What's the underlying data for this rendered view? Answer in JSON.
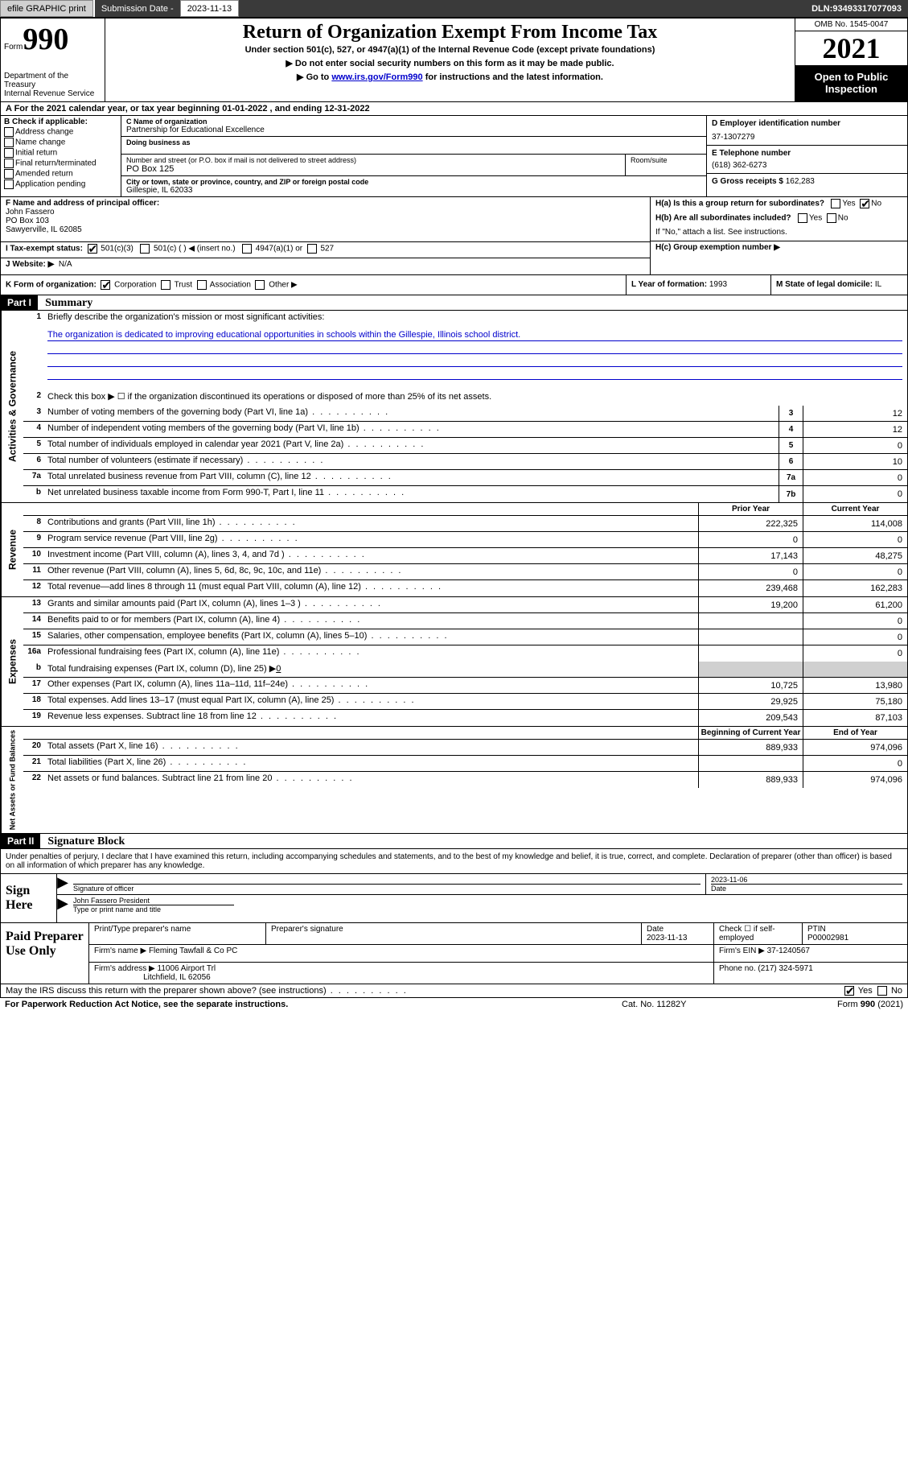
{
  "topbar": {
    "efile": "efile GRAPHIC print",
    "sub_label": "Submission Date - ",
    "sub_date": "2023-11-13",
    "dln_label": "DLN: ",
    "dln": "93493317077093"
  },
  "header": {
    "form_label": "Form",
    "form_num": "990",
    "dept": "Department of the Treasury\nInternal Revenue Service",
    "title": "Return of Organization Exempt From Income Tax",
    "sub1": "Under section 501(c), 527, or 4947(a)(1) of the Internal Revenue Code (except private foundations)",
    "sub2": "▶ Do not enter social security numbers on this form as it may be made public.",
    "sub3_pre": "▶ Go to ",
    "sub3_link": "www.irs.gov/Form990",
    "sub3_post": " for instructions and the latest information.",
    "omb": "OMB No. 1545-0047",
    "year": "2021",
    "open": "Open to Public Inspection"
  },
  "rowA": "A For the 2021 calendar year, or tax year beginning 01-01-2022   , and ending 12-31-2022",
  "checkB": {
    "label": "B Check if applicable:",
    "items": [
      "Address change",
      "Name change",
      "Initial return",
      "Final return/terminated",
      "Amended return",
      "Application pending"
    ]
  },
  "entity": {
    "c_label": "C Name of organization",
    "org_name": "Partnership for Educational Excellence",
    "dba_label": "Doing business as",
    "dba": "",
    "addr_label": "Number and street (or P.O. box if mail is not delivered to street address)",
    "room_label": "Room/suite",
    "addr": "PO Box 125",
    "city_label": "City or town, state or province, country, and ZIP or foreign postal code",
    "city": "Gillespie, IL  62033",
    "d_label": "D Employer identification number",
    "ein": "37-1307279",
    "e_label": "E Telephone number",
    "phone": "(618) 362-6273",
    "g_label": "G Gross receipts $ ",
    "gross": "162,283"
  },
  "fghij": {
    "f_label": "F Name and address of principal officer:",
    "f_name": "John Fassero",
    "f_addr1": "PO Box 103",
    "f_addr2": "Sawyerville, IL  62085",
    "i_label": "I Tax-exempt status:",
    "i_501c3": "501(c)(3)",
    "i_501c": "501(c) (   ) ◀ (insert no.)",
    "i_4947": "4947(a)(1) or",
    "i_527": "527",
    "j_label": "J Website: ▶",
    "j_val": "N/A",
    "ha_label": "H(a)  Is this a group return for subordinates?",
    "hb_label": "H(b)  Are all subordinates included?",
    "hb_note": "If \"No,\" attach a list. See instructions.",
    "hc_label": "H(c)  Group exemption number ▶",
    "yes": "Yes",
    "no": "No"
  },
  "klm": {
    "k_label": "K Form of organization:",
    "k_corp": "Corporation",
    "k_trust": "Trust",
    "k_assoc": "Association",
    "k_other": "Other ▶",
    "l_label": "L Year of formation: ",
    "l_val": "1993",
    "m_label": "M State of legal domicile: ",
    "m_val": "IL"
  },
  "part1": {
    "label": "Part I",
    "title": "Summary"
  },
  "gov": {
    "side": "Activities & Governance",
    "l1": "Briefly describe the organization's mission or most significant activities:",
    "mission": "The organization is dedicated to improving educational opportunities in schools within the Gillespie, Illinois school district.",
    "l2": "Check this box ▶ ☐  if the organization discontinued its operations or disposed of more than 25% of its net assets.",
    "rows": [
      {
        "n": "3",
        "d": "Number of voting members of the governing body (Part VI, line 1a)",
        "b": "3",
        "v": "12"
      },
      {
        "n": "4",
        "d": "Number of independent voting members of the governing body (Part VI, line 1b)",
        "b": "4",
        "v": "12"
      },
      {
        "n": "5",
        "d": "Total number of individuals employed in calendar year 2021 (Part V, line 2a)",
        "b": "5",
        "v": "0"
      },
      {
        "n": "6",
        "d": "Total number of volunteers (estimate if necessary)",
        "b": "6",
        "v": "10"
      },
      {
        "n": "7a",
        "d": "Total unrelated business revenue from Part VIII, column (C), line 12",
        "b": "7a",
        "v": "0"
      },
      {
        "n": "b",
        "d": "Net unrelated business taxable income from Form 990-T, Part I, line 11",
        "b": "7b",
        "v": "0"
      }
    ]
  },
  "rev": {
    "side": "Revenue",
    "hdr_prior": "Prior Year",
    "hdr_curr": "Current Year",
    "rows": [
      {
        "n": "8",
        "d": "Contributions and grants (Part VIII, line 1h)",
        "p": "222,325",
        "c": "114,008"
      },
      {
        "n": "9",
        "d": "Program service revenue (Part VIII, line 2g)",
        "p": "0",
        "c": "0"
      },
      {
        "n": "10",
        "d": "Investment income (Part VIII, column (A), lines 3, 4, and 7d )",
        "p": "17,143",
        "c": "48,275"
      },
      {
        "n": "11",
        "d": "Other revenue (Part VIII, column (A), lines 5, 6d, 8c, 9c, 10c, and 11e)",
        "p": "0",
        "c": "0"
      },
      {
        "n": "12",
        "d": "Total revenue—add lines 8 through 11 (must equal Part VIII, column (A), line 12)",
        "p": "239,468",
        "c": "162,283"
      }
    ]
  },
  "exp": {
    "side": "Expenses",
    "rows": [
      {
        "n": "13",
        "d": "Grants and similar amounts paid (Part IX, column (A), lines 1–3 )",
        "p": "19,200",
        "c": "61,200"
      },
      {
        "n": "14",
        "d": "Benefits paid to or for members (Part IX, column (A), line 4)",
        "p": "",
        "c": "0"
      },
      {
        "n": "15",
        "d": "Salaries, other compensation, employee benefits (Part IX, column (A), lines 5–10)",
        "p": "",
        "c": "0"
      },
      {
        "n": "16a",
        "d": "Professional fundraising fees (Part IX, column (A), line 11e)",
        "p": "",
        "c": "0"
      }
    ],
    "l16b_pre": "Total fundraising expenses (Part IX, column (D), line 25) ▶",
    "l16b_val": "0",
    "rows2": [
      {
        "n": "17",
        "d": "Other expenses (Part IX, column (A), lines 11a–11d, 11f–24e)",
        "p": "10,725",
        "c": "13,980"
      },
      {
        "n": "18",
        "d": "Total expenses. Add lines 13–17 (must equal Part IX, column (A), line 25)",
        "p": "29,925",
        "c": "75,180"
      },
      {
        "n": "19",
        "d": "Revenue less expenses. Subtract line 18 from line 12",
        "p": "209,543",
        "c": "87,103"
      }
    ]
  },
  "net": {
    "side": "Net Assets or Fund Balances",
    "hdr_beg": "Beginning of Current Year",
    "hdr_end": "End of Year",
    "rows": [
      {
        "n": "20",
        "d": "Total assets (Part X, line 16)",
        "p": "889,933",
        "c": "974,096"
      },
      {
        "n": "21",
        "d": "Total liabilities (Part X, line 26)",
        "p": "",
        "c": "0"
      },
      {
        "n": "22",
        "d": "Net assets or fund balances. Subtract line 21 from line 20",
        "p": "889,933",
        "c": "974,096"
      }
    ]
  },
  "part2": {
    "label": "Part II",
    "title": "Signature Block"
  },
  "sig": {
    "decl": "Under penalties of perjury, I declare that I have examined this return, including accompanying schedules and statements, and to the best of my knowledge and belief, it is true, correct, and complete. Declaration of preparer (other than officer) is based on all information of which preparer has any knowledge.",
    "here": "Sign Here",
    "sig_of": "Signature of officer",
    "date_lbl": "Date",
    "date": "2023-11-06",
    "name": "John Fassero President",
    "name_lbl": "Type or print name and title"
  },
  "prep": {
    "label": "Paid Preparer Use Only",
    "h1": "Print/Type preparer's name",
    "h2": "Preparer's signature",
    "h3": "Date",
    "date": "2023-11-13",
    "h4": "Check ☐ if self-employed",
    "h5": "PTIN",
    "ptin": "P00002981",
    "firm_name_lbl": "Firm's name    ▶",
    "firm_name": "Fleming Tawfall & Co PC",
    "firm_ein_lbl": "Firm's EIN ▶",
    "firm_ein": "37-1240567",
    "firm_addr_lbl": "Firm's address ▶",
    "firm_addr1": "11006 Airport Trl",
    "firm_addr2": "Litchfield, IL  62056",
    "phone_lbl": "Phone no. ",
    "phone": "(217) 324-5971"
  },
  "discuss": "May the IRS discuss this return with the preparer shown above? (see instructions)",
  "footer": {
    "l": "For Paperwork Reduction Act Notice, see the separate instructions.",
    "m": "Cat. No. 11282Y",
    "r": "Form 990 (2021)"
  }
}
